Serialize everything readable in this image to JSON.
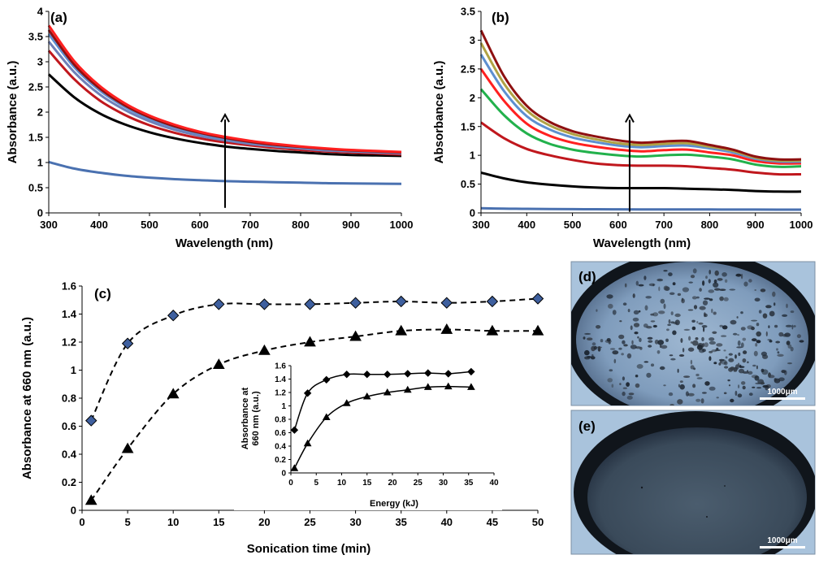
{
  "colors": {
    "blue_line": "#4a71b0",
    "black_line": "#000000",
    "red_line": "#c0171d",
    "bright_red": "#ff2020",
    "green_line": "#22b14c",
    "olive_line": "#b0a245",
    "light_blue_line": "#5e8fd0",
    "dark_red_line": "#8e1010",
    "marker_blue": "#3e5f9e",
    "micro_bg": "#a9c3dc",
    "micro_rim": "#10151b"
  },
  "panels": {
    "a": {
      "label": "(a)"
    },
    "b": {
      "label": "(b)"
    },
    "c": {
      "label": "(c)"
    },
    "d": {
      "label": "(d)",
      "scale_bar": "1000μm"
    },
    "e": {
      "label": "(e)",
      "scale_bar": "1000μm"
    }
  },
  "chart_data": [
    {
      "id": "a",
      "type": "line",
      "title": "(a)",
      "xlabel": "Wavelength (nm)",
      "ylabel": "Absorbance (a.u.)",
      "xlim": [
        300,
        1000
      ],
      "ylim": [
        0,
        4
      ],
      "xticks": [
        300,
        400,
        500,
        600,
        700,
        800,
        900,
        1000
      ],
      "yticks": [
        0,
        0.5,
        1,
        1.5,
        2,
        2.5,
        3,
        3.5,
        4
      ],
      "annotation": "upward arrow at 650 nm (increasing sonication time)",
      "x": [
        300,
        350,
        400,
        450,
        500,
        550,
        600,
        650,
        700,
        750,
        800,
        850,
        900,
        950,
        1000
      ],
      "series": [
        {
          "name": "s1",
          "color": "#4a71b0",
          "values": [
            1.01,
            0.88,
            0.8,
            0.74,
            0.7,
            0.67,
            0.65,
            0.63,
            0.62,
            0.61,
            0.6,
            0.59,
            0.585,
            0.58,
            0.575
          ]
        },
        {
          "name": "s2",
          "color": "#000000",
          "values": [
            2.75,
            2.3,
            1.98,
            1.76,
            1.6,
            1.48,
            1.39,
            1.32,
            1.27,
            1.23,
            1.2,
            1.17,
            1.15,
            1.14,
            1.13
          ]
        },
        {
          "name": "s3",
          "color": "#c0171d",
          "values": [
            3.22,
            2.66,
            2.24,
            1.95,
            1.74,
            1.59,
            1.48,
            1.4,
            1.34,
            1.29,
            1.25,
            1.22,
            1.2,
            1.18,
            1.16
          ]
        },
        {
          "name": "s4",
          "color": "#6f7fb8",
          "values": [
            3.4,
            2.8,
            2.36,
            2.05,
            1.82,
            1.65,
            1.53,
            1.44,
            1.37,
            1.32,
            1.28,
            1.24,
            1.22,
            1.2,
            1.18
          ]
        },
        {
          "name": "s5",
          "color": "#5e8fd0",
          "values": [
            3.55,
            2.9,
            2.44,
            2.11,
            1.87,
            1.7,
            1.57,
            1.47,
            1.4,
            1.34,
            1.3,
            1.26,
            1.23,
            1.21,
            1.19
          ]
        },
        {
          "name": "s6",
          "color": "#8e1010",
          "values": [
            3.63,
            2.95,
            2.48,
            2.14,
            1.9,
            1.72,
            1.59,
            1.49,
            1.41,
            1.35,
            1.31,
            1.27,
            1.24,
            1.22,
            1.2
          ]
        },
        {
          "name": "s7",
          "color": "#ff2020",
          "values": [
            3.72,
            3.02,
            2.53,
            2.18,
            1.93,
            1.75,
            1.61,
            1.51,
            1.43,
            1.37,
            1.32,
            1.28,
            1.25,
            1.23,
            1.21
          ]
        }
      ]
    },
    {
      "id": "b",
      "type": "line",
      "title": "(b)",
      "xlabel": "Wavelength (nm)",
      "ylabel": "Absorbance (a.u.)",
      "xlim": [
        300,
        1000
      ],
      "ylim": [
        0,
        3.5
      ],
      "xticks": [
        300,
        400,
        500,
        600,
        700,
        800,
        900,
        1000
      ],
      "yticks": [
        0,
        0.5,
        1,
        1.5,
        2,
        2.5,
        3,
        3.5
      ],
      "annotation": "upward arrow at 625 nm (increasing sonication time)",
      "x": [
        300,
        350,
        400,
        450,
        500,
        550,
        600,
        650,
        700,
        750,
        800,
        850,
        900,
        950,
        1000
      ],
      "series": [
        {
          "name": "s1",
          "color": "#4a71b0",
          "values": [
            0.08,
            0.075,
            0.07,
            0.068,
            0.065,
            0.063,
            0.062,
            0.061,
            0.06,
            0.06,
            0.059,
            0.058,
            0.058,
            0.057,
            0.057
          ]
        },
        {
          "name": "s2",
          "color": "#000000",
          "values": [
            0.7,
            0.6,
            0.53,
            0.49,
            0.46,
            0.44,
            0.43,
            0.43,
            0.43,
            0.42,
            0.41,
            0.4,
            0.38,
            0.37,
            0.37
          ]
        },
        {
          "name": "s3",
          "color": "#c0171d",
          "values": [
            1.57,
            1.3,
            1.11,
            1.0,
            0.92,
            0.86,
            0.83,
            0.82,
            0.82,
            0.81,
            0.78,
            0.75,
            0.7,
            0.67,
            0.67
          ]
        },
        {
          "name": "s4",
          "color": "#22b14c",
          "values": [
            2.15,
            1.7,
            1.38,
            1.2,
            1.1,
            1.04,
            1.0,
            0.98,
            1.0,
            1.01,
            0.98,
            0.93,
            0.84,
            0.8,
            0.81
          ]
        },
        {
          "name": "s5",
          "color": "#ff2020",
          "values": [
            2.5,
            1.95,
            1.55,
            1.34,
            1.22,
            1.15,
            1.1,
            1.07,
            1.09,
            1.1,
            1.05,
            1.0,
            0.9,
            0.86,
            0.86
          ]
        },
        {
          "name": "s6",
          "color": "#5e8fd0",
          "values": [
            2.75,
            2.12,
            1.68,
            1.45,
            1.31,
            1.23,
            1.17,
            1.14,
            1.16,
            1.17,
            1.12,
            1.05,
            0.94,
            0.89,
            0.89
          ]
        },
        {
          "name": "s7",
          "color": "#b0a245",
          "values": [
            2.95,
            2.25,
            1.78,
            1.52,
            1.37,
            1.28,
            1.21,
            1.18,
            1.2,
            1.21,
            1.15,
            1.08,
            0.96,
            0.91,
            0.91
          ]
        },
        {
          "name": "s8",
          "color": "#8e1010",
          "values": [
            3.17,
            2.38,
            1.86,
            1.58,
            1.42,
            1.33,
            1.26,
            1.22,
            1.24,
            1.25,
            1.18,
            1.1,
            0.98,
            0.93,
            0.93
          ]
        }
      ]
    },
    {
      "id": "c",
      "type": "scatter",
      "title": "(c)",
      "xlabel": "Sonication time (min)",
      "ylabel": "Absorbance at 660 nm (a.u.)",
      "xlim": [
        0,
        50
      ],
      "ylim": [
        0,
        1.6
      ],
      "xticks": [
        0,
        5,
        10,
        15,
        20,
        25,
        30,
        35,
        40,
        45,
        50
      ],
      "yticks": [
        0,
        0.2,
        0.4,
        0.6,
        0.8,
        1,
        1.2,
        1.4,
        1.6
      ],
      "series": [
        {
          "name": "diamonds",
          "marker": "diamond",
          "x": [
            1,
            5,
            10,
            15,
            20,
            25,
            30,
            35,
            40,
            45,
            50
          ],
          "values": [
            0.64,
            1.19,
            1.39,
            1.47,
            1.47,
            1.47,
            1.48,
            1.49,
            1.48,
            1.49,
            1.51
          ]
        },
        {
          "name": "triangles",
          "marker": "triangle",
          "x": [
            1,
            5,
            10,
            15,
            20,
            25,
            30,
            35,
            40,
            45,
            50
          ],
          "values": [
            0.07,
            0.44,
            0.83,
            1.04,
            1.14,
            1.2,
            1.24,
            1.28,
            1.29,
            1.28,
            1.28
          ]
        }
      ]
    },
    {
      "id": "c-inset",
      "type": "line",
      "title": "",
      "xlabel": "Energy (kJ)",
      "ylabel": "Absorbance at 660 nm (a.u.)",
      "ylabel_lines": [
        "Absorbance at",
        "660 nm (a.u.)"
      ],
      "xlim": [
        0,
        40
      ],
      "ylim": [
        0,
        1.6
      ],
      "xticks": [
        0,
        5,
        10,
        15,
        20,
        25,
        30,
        35,
        40
      ],
      "yticks": [
        0,
        0.2,
        0.4,
        0.6,
        0.8,
        1,
        1.2,
        1.4,
        1.6
      ],
      "series": [
        {
          "name": "diamonds",
          "marker": "diamond",
          "x": [
            0.7,
            3.3,
            7,
            11,
            15,
            19,
            23,
            27,
            31,
            35.5
          ],
          "values": [
            0.64,
            1.19,
            1.39,
            1.47,
            1.47,
            1.47,
            1.48,
            1.49,
            1.48,
            1.51
          ]
        },
        {
          "name": "triangles",
          "marker": "triangle",
          "x": [
            0.7,
            3.3,
            7,
            11,
            15,
            19,
            23,
            27,
            31,
            35.5
          ],
          "values": [
            0.07,
            0.44,
            0.83,
            1.04,
            1.14,
            1.2,
            1.24,
            1.28,
            1.29,
            1.28
          ]
        }
      ]
    }
  ]
}
